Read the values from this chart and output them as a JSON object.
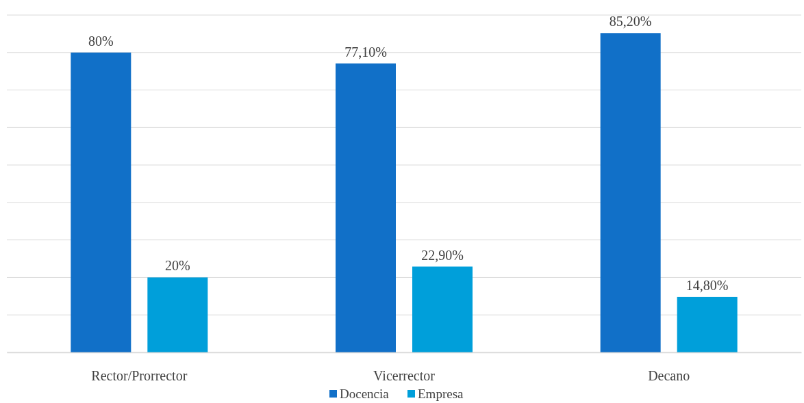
{
  "chart_data": {
    "type": "bar",
    "categories": [
      "Rector/Prorrector",
      "Vicerrector",
      "Decano"
    ],
    "series": [
      {
        "name": "Docencia",
        "color": "#1170c8",
        "values": [
          80,
          77.1,
          85.2
        ],
        "value_labels": [
          "80%",
          "77,10%",
          "85,20%"
        ]
      },
      {
        "name": "Empresa",
        "color": "#009fda",
        "values": [
          20,
          22.9,
          14.8
        ],
        "value_labels": [
          "20%",
          "22,90%",
          "14,80%"
        ]
      }
    ],
    "ylim": [
      0,
      90
    ],
    "yticks": [
      {
        "value": 0,
        "label": null
      },
      {
        "value": 10,
        "label": null
      },
      {
        "value": 20,
        "label": null
      },
      {
        "value": 30,
        "label": null
      },
      {
        "value": 40,
        "label": null
      },
      {
        "value": 50,
        "label": null
      },
      {
        "value": 60,
        "label": null
      },
      {
        "value": 70,
        "label": null
      },
      {
        "value": 80,
        "label": null
      },
      {
        "value": 90,
        "label": null
      }
    ],
    "grid": "y",
    "tick_labels": "x",
    "legend": "bottom"
  }
}
